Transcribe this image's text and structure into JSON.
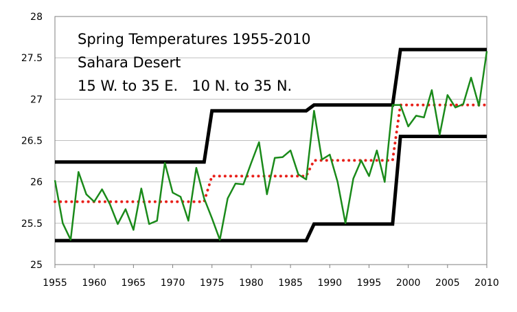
{
  "chart_data": {
    "type": "line",
    "title_lines": [
      "Spring Temperatures 1955-2010",
      "Sahara Desert",
      "15 W. to 35 E.   10 N. to 35 N."
    ],
    "xlabel": "",
    "ylabel": "",
    "xlim": [
      1955,
      2010
    ],
    "ylim": [
      25,
      28
    ],
    "x_ticks": [
      1955,
      1960,
      1965,
      1970,
      1975,
      1980,
      1985,
      1990,
      1995,
      2000,
      2005,
      2010
    ],
    "y_ticks": [
      25,
      25.5,
      26,
      26.5,
      27,
      27.5,
      28
    ],
    "y_tick_labels": [
      "25",
      "25.5",
      "26",
      "26.5",
      "27",
      "27.5",
      "28"
    ],
    "grid": "horizontal",
    "colors": {
      "temperature": "#1a8a1a",
      "mean": "#e8201a",
      "bounds": "#000000",
      "grid": "#bfbfbf",
      "frame": "#7f7f7f"
    },
    "series": [
      {
        "style": "solid-green",
        "x": [
          1955,
          1956,
          1957,
          1958,
          1959,
          1960,
          1961,
          1962,
          1963,
          1964,
          1965,
          1966,
          1967,
          1968,
          1969,
          1970,
          1971,
          1972,
          1973,
          1974,
          1975,
          1976,
          1977,
          1978,
          1979,
          1980,
          1981,
          1982,
          1983,
          1984,
          1985,
          1986,
          1987,
          1988,
          1989,
          1990,
          1991,
          1992,
          1993,
          1994,
          1995,
          1996,
          1997,
          1998,
          1999,
          2000,
          2001,
          2002,
          2003,
          2004,
          2005,
          2006,
          2007,
          2008,
          2009,
          2010
        ],
        "y": [
          26.02,
          25.5,
          25.3,
          26.12,
          25.85,
          25.76,
          25.91,
          25.73,
          25.49,
          25.67,
          25.42,
          25.92,
          25.49,
          25.53,
          26.23,
          25.87,
          25.82,
          25.53,
          26.17,
          25.8,
          25.56,
          25.3,
          25.8,
          25.98,
          25.97,
          26.23,
          26.48,
          25.85,
          26.29,
          26.3,
          26.38,
          26.09,
          26.03,
          26.86,
          26.27,
          26.33,
          26.0,
          25.5,
          26.04,
          26.26,
          26.07,
          26.38,
          26.0,
          26.93,
          26.93,
          26.67,
          26.8,
          26.78,
          27.11,
          26.57,
          27.05,
          26.9,
          26.94,
          27.26,
          26.92,
          27.58
        ]
      },
      {
        "style": "dotted-red",
        "x": [
          1955,
          1974,
          1975,
          1987,
          1988,
          1998,
          1999,
          2010
        ],
        "y": [
          25.76,
          25.76,
          26.07,
          26.07,
          26.26,
          26.26,
          26.93,
          26.93
        ]
      },
      {
        "style": "thick-black",
        "x": [
          1955,
          1974,
          1975,
          1987,
          1988,
          1998,
          1999,
          2010
        ],
        "y": [
          26.24,
          26.24,
          26.86,
          26.86,
          26.93,
          26.93,
          27.6,
          27.6
        ]
      },
      {
        "style": "thick-black",
        "x": [
          1955,
          1987,
          1988,
          1998,
          1999,
          2010
        ],
        "y": [
          25.29,
          25.29,
          25.49,
          25.49,
          26.55,
          26.55
        ]
      }
    ]
  }
}
